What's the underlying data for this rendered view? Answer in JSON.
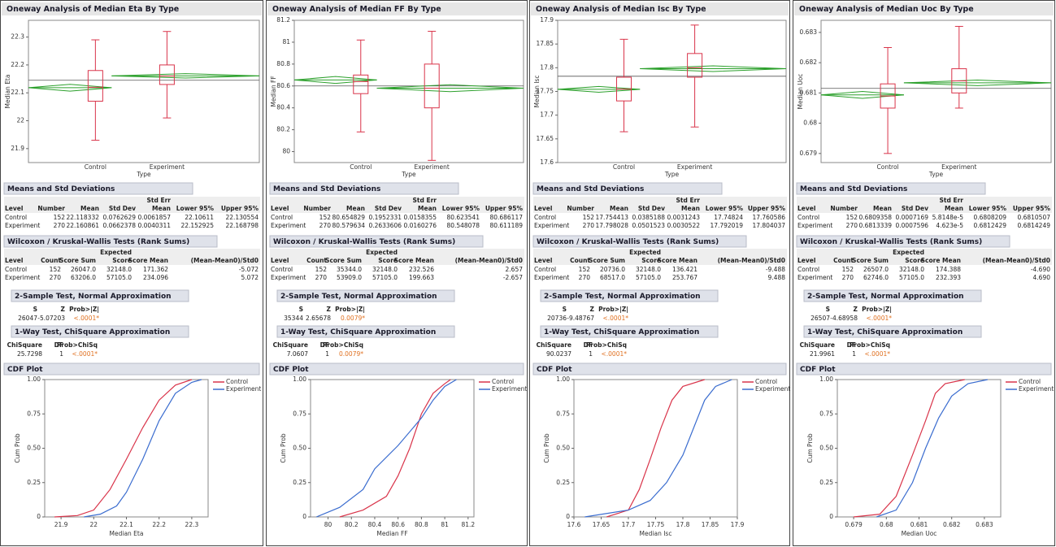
{
  "panels": [
    {
      "title": "Oneway Analysis of Median Eta By Type",
      "oneway": {
        "ylabel": "Median Eta",
        "xlabel": "Type",
        "categories": [
          "Control",
          "Experiment"
        ],
        "ylim": [
          21.85,
          22.36
        ],
        "yticks": [
          21.9,
          22,
          22.1,
          22.2,
          22.3
        ],
        "grand_mean": 22.145,
        "boxes": [
          {
            "low": 21.93,
            "q1": 22.07,
            "median": 22.12,
            "q3": 22.18,
            "high": 22.29
          },
          {
            "low": 22.01,
            "q1": 22.13,
            "median": 22.16,
            "q3": 22.2,
            "high": 22.32
          }
        ]
      },
      "means": {
        "title": "Means and Std Deviations",
        "headers": [
          "Level",
          "Number",
          "Mean",
          "Std Dev",
          [
            "Std Err",
            "Mean"
          ],
          "Lower 95%",
          "Upper 95%"
        ],
        "rows": [
          [
            "Control",
            "152",
            "22.118332",
            "0.0762629",
            "0.0061857",
            "22.10611",
            "22.130554"
          ],
          [
            "Experiment",
            "270",
            "22.160861",
            "0.0662378",
            "0.0040311",
            "22.152925",
            "22.168798"
          ]
        ]
      },
      "wilcoxon": {
        "title": "Wilcoxon / Kruskal-Wallis Tests (Rank Sums)",
        "headers": [
          "Level",
          "Count",
          "Score Sum",
          [
            "Expected",
            "Score"
          ],
          "Score Mean",
          "(Mean-Mean0)/Std0"
        ],
        "rows": [
          [
            "Control",
            "152",
            "26047.0",
            "32148.0",
            "171.362",
            "-5.072"
          ],
          [
            "Experiment",
            "270",
            "63206.0",
            "57105.0",
            "234.096",
            "5.072"
          ]
        ]
      },
      "two_sample": {
        "title": "2-Sample Test, Normal Approximation",
        "headers": [
          "S",
          "Z",
          "Prob>|Z|"
        ],
        "values": [
          "26047",
          "-5.07203",
          "<.0001*"
        ]
      },
      "one_way": {
        "title": "1-Way Test, ChiSquare Approximation",
        "headers": [
          "ChiSquare",
          "DF",
          "Prob>ChiSq"
        ],
        "values": [
          "25.7298",
          "1",
          "<.0001*"
        ]
      },
      "cdf": {
        "title": "CDF Plot",
        "ylabel": "Cum Prob",
        "xlabel": "Median Eta",
        "xlim": [
          21.85,
          22.35
        ],
        "xticks": [
          21.9,
          22,
          22.1,
          22.2,
          22.3
        ],
        "ylim": [
          0,
          1
        ],
        "yticks": [
          0,
          0.25,
          {
            "value": 0.5,
            "label": "0.50"
          },
          0.75,
          {
            "value": 1,
            "label": "1.00"
          }
        ],
        "series": [
          {
            "name": "Control",
            "color": "#d9344a",
            "x": [
              21.88,
              21.95,
              22.0,
              22.05,
              22.1,
              22.15,
              22.2,
              22.25,
              22.3
            ],
            "y": [
              0,
              0.01,
              0.05,
              0.2,
              0.42,
              0.65,
              0.85,
              0.96,
              1
            ]
          },
          {
            "name": "Experiment",
            "color": "#3a6ccf",
            "x": [
              21.97,
              22.02,
              22.07,
              22.1,
              22.15,
              22.2,
              22.25,
              22.3,
              22.33
            ],
            "y": [
              0,
              0.02,
              0.08,
              0.18,
              0.42,
              0.7,
              0.9,
              0.98,
              1
            ]
          }
        ]
      }
    },
    {
      "title": "Oneway Analysis of Median FF By Type",
      "oneway": {
        "ylabel": "Median FF",
        "xlabel": "Type",
        "categories": [
          "Control",
          "Experiment"
        ],
        "ylim": [
          79.9,
          81.2
        ],
        "yticks": [
          80,
          80.2,
          80.4,
          80.6,
          80.8,
          81,
          81.2
        ],
        "grand_mean": 80.6,
        "boxes": [
          {
            "low": 80.18,
            "q1": 80.53,
            "median": 80.64,
            "q3": 80.7,
            "high": 81.02
          },
          {
            "low": 79.92,
            "q1": 80.4,
            "median": 80.58,
            "q3": 80.8,
            "high": 81.1
          }
        ]
      },
      "means": {
        "title": "Means and Std Deviations",
        "headers": [
          "Level",
          "Number",
          "Mean",
          "Std Dev",
          [
            "Std Err",
            "Mean"
          ],
          "Lower 95%",
          "Upper 95%"
        ],
        "rows": [
          [
            "Control",
            "152",
            "80.654829",
            "0.1952331",
            "0.0158355",
            "80.623541",
            "80.686117"
          ],
          [
            "Experiment",
            "270",
            "80.579634",
            "0.2633606",
            "0.0160276",
            "80.548078",
            "80.611189"
          ]
        ]
      },
      "wilcoxon": {
        "title": "Wilcoxon / Kruskal-Wallis Tests (Rank Sums)",
        "headers": [
          "Level",
          "Count",
          "Score Sum",
          [
            "Expected",
            "Score"
          ],
          "Score Mean",
          "(Mean-Mean0)/Std0"
        ],
        "rows": [
          [
            "Control",
            "152",
            "35344.0",
            "32148.0",
            "232.526",
            "2.657"
          ],
          [
            "Experiment",
            "270",
            "53909.0",
            "57105.0",
            "199.663",
            "-2.657"
          ]
        ]
      },
      "two_sample": {
        "title": "2-Sample Test, Normal Approximation",
        "headers": [
          "S",
          "Z",
          "Prob>|Z|"
        ],
        "values": [
          "35344",
          "2.65678",
          "0.0079*"
        ]
      },
      "one_way": {
        "title": "1-Way Test, ChiSquare Approximation",
        "headers": [
          "ChiSquare",
          "DF",
          "Prob>ChiSq"
        ],
        "values": [
          "7.0607",
          "1",
          "0.0079*"
        ]
      },
      "cdf": {
        "title": "CDF Plot",
        "ylabel": "Cum Prob",
        "xlabel": "Median FF",
        "xlim": [
          79.85,
          81.25
        ],
        "xticks": [
          80,
          80.2,
          80.4,
          80.6,
          80.8,
          81,
          81.2
        ],
        "ylim": [
          0,
          1
        ],
        "yticks": [
          0,
          0.25,
          {
            "value": 0.5,
            "label": "0.50"
          },
          0.75,
          {
            "value": 1,
            "label": "1.00"
          }
        ],
        "series": [
          {
            "name": "Control",
            "color": "#d9344a",
            "x": [
              80.1,
              80.3,
              80.5,
              80.6,
              80.7,
              80.8,
              80.9,
              81.0,
              81.05
            ],
            "y": [
              0,
              0.05,
              0.15,
              0.3,
              0.5,
              0.75,
              0.9,
              0.97,
              1
            ]
          },
          {
            "name": "Experiment",
            "color": "#3a6ccf",
            "x": [
              79.9,
              80.1,
              80.3,
              80.4,
              80.6,
              80.8,
              80.9,
              81.0,
              81.1
            ],
            "y": [
              0,
              0.07,
              0.2,
              0.35,
              0.52,
              0.72,
              0.85,
              0.95,
              1
            ]
          }
        ]
      }
    },
    {
      "title": "Oneway Analysis of Median Isc By Type",
      "oneway": {
        "ylabel": "Median Isc",
        "xlabel": "Type",
        "categories": [
          "Control",
          "Experiment"
        ],
        "ylim": [
          17.6,
          17.9
        ],
        "yticks": [
          17.6,
          17.65,
          17.7,
          17.75,
          17.8,
          17.85,
          17.9
        ],
        "grand_mean": 17.782,
        "boxes": [
          {
            "low": 17.665,
            "q1": 17.73,
            "median": 17.755,
            "q3": 17.78,
            "high": 17.86
          },
          {
            "low": 17.675,
            "q1": 17.78,
            "median": 17.8,
            "q3": 17.83,
            "high": 17.89
          }
        ]
      },
      "means": {
        "title": "Means and Std Deviations",
        "headers": [
          "Level",
          "Number",
          "Mean",
          "Std Dev",
          [
            "Std Err",
            "Mean"
          ],
          "Lower 95%",
          "Upper 95%"
        ],
        "rows": [
          [
            "Control",
            "152",
            "17.754413",
            "0.0385188",
            "0.0031243",
            "17.74824",
            "17.760586"
          ],
          [
            "Experiment",
            "270",
            "17.798028",
            "0.0501523",
            "0.0030522",
            "17.792019",
            "17.804037"
          ]
        ]
      },
      "wilcoxon": {
        "title": "Wilcoxon / Kruskal-Wallis Tests (Rank Sums)",
        "headers": [
          "Level",
          "Count",
          "Score Sum",
          [
            "Expected",
            "Score"
          ],
          "Score Mean",
          "(Mean-Mean0)/Std0"
        ],
        "rows": [
          [
            "Control",
            "152",
            "20736.0",
            "32148.0",
            "136.421",
            "-9.488"
          ],
          [
            "Experiment",
            "270",
            "68517.0",
            "57105.0",
            "253.767",
            "9.488"
          ]
        ]
      },
      "two_sample": {
        "title": "2-Sample Test, Normal Approximation",
        "headers": [
          "S",
          "Z",
          "Prob>|Z|"
        ],
        "values": [
          "20736",
          "-9.48767",
          "<.0001*"
        ]
      },
      "one_way": {
        "title": "1-Way Test, ChiSquare Approximation",
        "headers": [
          "ChiSquare",
          "DF",
          "Prob>ChiSq"
        ],
        "values": [
          "90.0237",
          "1",
          "<.0001*"
        ]
      },
      "cdf": {
        "title": "CDF Plot",
        "ylabel": "Cum Prob",
        "xlabel": "Median Isc",
        "xlim": [
          17.6,
          17.9
        ],
        "xticks": [
          17.6,
          17.65,
          17.7,
          17.75,
          17.8,
          17.85,
          17.9
        ],
        "ylim": [
          0,
          1
        ],
        "yticks": [
          0,
          0.25,
          {
            "value": 0.5,
            "label": "0.50"
          },
          0.75,
          {
            "value": 1,
            "label": "1.00"
          }
        ],
        "series": [
          {
            "name": "Control",
            "color": "#d9344a",
            "x": [
              17.66,
              17.7,
              17.72,
              17.74,
              17.76,
              17.78,
              17.8,
              17.84
            ],
            "y": [
              0,
              0.05,
              0.2,
              0.42,
              0.65,
              0.85,
              0.95,
              1
            ]
          },
          {
            "name": "Experiment",
            "color": "#3a6ccf",
            "x": [
              17.62,
              17.7,
              17.74,
              17.77,
              17.8,
              17.82,
              17.84,
              17.86,
              17.89
            ],
            "y": [
              0,
              0.05,
              0.12,
              0.25,
              0.45,
              0.65,
              0.85,
              0.95,
              1
            ]
          }
        ]
      }
    },
    {
      "title": "Oneway Analysis of Median Uoc By Type",
      "oneway": {
        "ylabel": "Median Uoc",
        "xlabel": "Type",
        "categories": [
          "Control",
          "Experiment"
        ],
        "ylim": [
          0.6787,
          0.6834
        ],
        "yticks": [
          0.679,
          0.68,
          0.681,
          0.682,
          0.683
        ],
        "grand_mean": 0.68115,
        "boxes": [
          {
            "low": 0.679,
            "q1": 0.6805,
            "median": 0.6809,
            "q3": 0.6813,
            "high": 0.6825
          },
          {
            "low": 0.6805,
            "q1": 0.681,
            "median": 0.6814,
            "q3": 0.6818,
            "high": 0.6832
          }
        ]
      },
      "means": {
        "title": "Means and Std Deviations",
        "headers": [
          "Level",
          "Number",
          "Mean",
          "Std Dev",
          [
            "Std Err",
            "Mean"
          ],
          "Lower 95%",
          "Upper 95%"
        ],
        "rows": [
          [
            "Control",
            "152",
            "0.6809358",
            "0.0007169",
            "5.8148e-5",
            "0.6808209",
            "0.6810507"
          ],
          [
            "Experiment",
            "270",
            "0.6813339",
            "0.0007596",
            "4.623e-5",
            "0.6812429",
            "0.6814249"
          ]
        ]
      },
      "wilcoxon": {
        "title": "Wilcoxon / Kruskal-Wallis Tests (Rank Sums)",
        "headers": [
          "Level",
          "Count",
          "Score Sum",
          [
            "Expected",
            "Score"
          ],
          "Score Mean",
          "(Mean-Mean0)/Std0"
        ],
        "rows": [
          [
            "Control",
            "152",
            "26507.0",
            "32148.0",
            "174.388",
            "-4.690"
          ],
          [
            "Experiment",
            "270",
            "62746.0",
            "57105.0",
            "232.393",
            "4.690"
          ]
        ]
      },
      "two_sample": {
        "title": "2-Sample Test, Normal Approximation",
        "headers": [
          "S",
          "Z",
          "Prob>|Z|"
        ],
        "values": [
          "26507",
          "-4.68958",
          "<.0001*"
        ]
      },
      "one_way": {
        "title": "1-Way Test, ChiSquare Approximation",
        "headers": [
          "ChiSquare",
          "DF",
          "Prob>ChiSq"
        ],
        "values": [
          "21.9961",
          "1",
          "<.0001*"
        ]
      },
      "cdf": {
        "title": "CDF Plot",
        "ylabel": "Cum Prob",
        "xlabel": "Median Uoc",
        "xlim": [
          0.6785,
          0.6835
        ],
        "xticks": [
          0.679,
          0.68,
          0.681,
          0.682,
          0.683
        ],
        "ylim": [
          0,
          1
        ],
        "yticks": [
          0,
          0.25,
          {
            "value": 0.5,
            "label": "0.50"
          },
          0.75,
          {
            "value": 1,
            "label": "1.00"
          }
        ],
        "series": [
          {
            "name": "Control",
            "color": "#d9344a",
            "x": [
              0.679,
              0.6798,
              0.6803,
              0.6808,
              0.6812,
              0.6815,
              0.6818,
              0.6824
            ],
            "y": [
              0,
              0.02,
              0.15,
              0.45,
              0.7,
              0.9,
              0.97,
              1
            ]
          },
          {
            "name": "Experiment",
            "color": "#3a6ccf",
            "x": [
              0.6797,
              0.6803,
              0.6808,
              0.6812,
              0.6816,
              0.682,
              0.6825,
              0.6831
            ],
            "y": [
              0,
              0.05,
              0.25,
              0.5,
              0.72,
              0.88,
              0.97,
              1
            ]
          }
        ]
      }
    }
  ]
}
